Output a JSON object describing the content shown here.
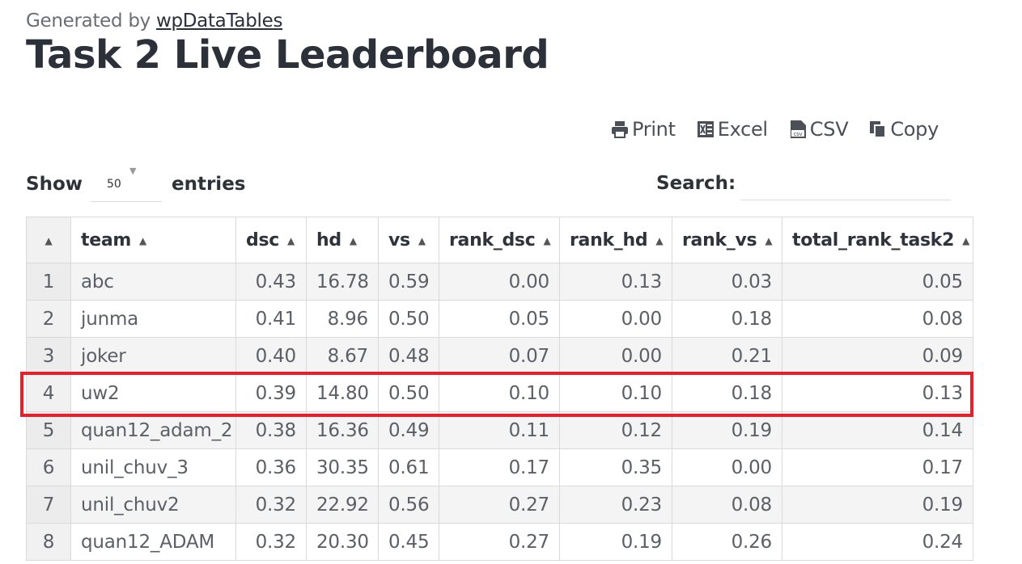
{
  "header": {
    "generated_prefix": "Generated by ",
    "generated_link": "wpDataTables",
    "title": "Task 2 Live Leaderboard"
  },
  "toolbar": {
    "print_label": "Print",
    "excel_label": "Excel",
    "csv_label": "CSV",
    "copy_label": "Copy"
  },
  "length_control": {
    "show_label": "Show",
    "value": "50",
    "entries_label": "entries"
  },
  "search": {
    "label": "Search:",
    "value": ""
  },
  "table": {
    "columns": [
      "team",
      "dsc",
      "hd",
      "vs",
      "rank_dsc",
      "rank_hd",
      "rank_vs",
      "total_rank_task2"
    ],
    "rows": [
      {
        "idx": "1",
        "team": "abc",
        "dsc": "0.43",
        "hd": "16.78",
        "vs": "0.59",
        "rank_dsc": "0.00",
        "rank_hd": "0.13",
        "rank_vs": "0.03",
        "total": "0.05"
      },
      {
        "idx": "2",
        "team": "junma",
        "dsc": "0.41",
        "hd": "8.96",
        "vs": "0.50",
        "rank_dsc": "0.05",
        "rank_hd": "0.00",
        "rank_vs": "0.18",
        "total": "0.08"
      },
      {
        "idx": "3",
        "team": "joker",
        "dsc": "0.40",
        "hd": "8.67",
        "vs": "0.48",
        "rank_dsc": "0.07",
        "rank_hd": "0.00",
        "rank_vs": "0.21",
        "total": "0.09"
      },
      {
        "idx": "4",
        "team": "uw2",
        "dsc": "0.39",
        "hd": "14.80",
        "vs": "0.50",
        "rank_dsc": "0.10",
        "rank_hd": "0.10",
        "rank_vs": "0.18",
        "total": "0.13"
      },
      {
        "idx": "5",
        "team": "quan12_adam_2",
        "dsc": "0.38",
        "hd": "16.36",
        "vs": "0.49",
        "rank_dsc": "0.11",
        "rank_hd": "0.12",
        "rank_vs": "0.19",
        "total": "0.14"
      },
      {
        "idx": "6",
        "team": "unil_chuv_3",
        "dsc": "0.36",
        "hd": "30.35",
        "vs": "0.61",
        "rank_dsc": "0.17",
        "rank_hd": "0.35",
        "rank_vs": "0.00",
        "total": "0.17"
      },
      {
        "idx": "7",
        "team": "unil_chuv2",
        "dsc": "0.32",
        "hd": "22.92",
        "vs": "0.56",
        "rank_dsc": "0.27",
        "rank_hd": "0.23",
        "rank_vs": "0.08",
        "total": "0.19"
      },
      {
        "idx": "8",
        "team": "quan12_ADAM",
        "dsc": "0.32",
        "hd": "20.30",
        "vs": "0.45",
        "rank_dsc": "0.27",
        "rank_hd": "0.19",
        "rank_vs": "0.26",
        "total": "0.24"
      }
    ]
  },
  "colors": {
    "highlight": "#e5202a",
    "title": "#2b3039",
    "row_alt": "#f4f4f4"
  },
  "icons": [
    "print-icon",
    "excel-icon",
    "csv-icon",
    "copy-icon",
    "sort-arrow-icon"
  ]
}
